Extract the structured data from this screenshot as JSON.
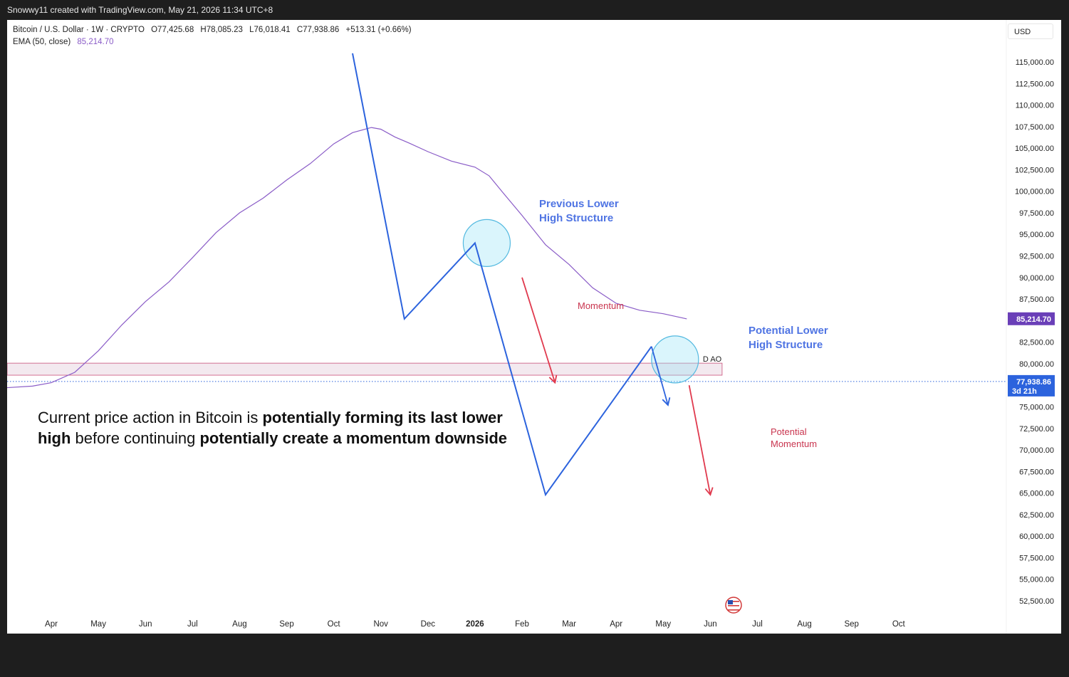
{
  "header": {
    "attribution": "Snowwy11 created with TradingView.com, May 21, 2026 11:34 UTC+8"
  },
  "legend": {
    "symbol": "Bitcoin / U.S. Dollar · 1W · CRYPTO",
    "open": "O77,425.68",
    "high": "H78,085.23",
    "low": "L76,018.41",
    "close": "C77,938.86",
    "change": "+513.31 (+0.66%)",
    "ema_label": "EMA (50, close)",
    "ema_value": "85,214.70"
  },
  "currency": "USD",
  "chart_data": {
    "type": "line",
    "title": "",
    "y_unit": "USD",
    "ylim": [
      51250,
      117500
    ],
    "y_ticks": [
      115000,
      112500,
      110000,
      107500,
      105000,
      102500,
      100000,
      97500,
      95000,
      92500,
      90000,
      87500,
      85000,
      82500,
      80000,
      77500,
      75000,
      72500,
      70000,
      67500,
      65000,
      62500,
      60000,
      57500,
      55000,
      52500
    ],
    "y_tick_labels": [
      "115,000.00",
      "112,500.00",
      "110,000.00",
      "107,500.00",
      "105,000.00",
      "102,500.00",
      "100,000.00",
      "97,500.00",
      "95,000.00",
      "92,500.00",
      "90,000.00",
      "87,500.00",
      "85,000.00",
      "82,500.00",
      "80,000.00",
      "77,500.00",
      "75,000.00",
      "72,500.00",
      "70,000.00",
      "67,500.00",
      "65,000.00",
      "62,500.00",
      "60,000.00",
      "57,500.00",
      "55,000.00",
      "52,500.00"
    ],
    "x_tick_labels": [
      "Apr",
      "May",
      "Jun",
      "Jul",
      "Aug",
      "Sep",
      "Oct",
      "Nov",
      "Dec",
      "2026",
      "Feb",
      "Mar",
      "Apr",
      "May",
      "Jun",
      "Jul",
      "Aug",
      "Sep",
      "Oct"
    ],
    "x_tick_month_index": [
      0,
      1,
      2,
      3,
      4,
      5,
      6,
      7,
      8,
      9,
      10,
      11,
      12,
      13,
      14,
      15,
      16,
      17,
      18
    ],
    "x_tick_start": "2025-04",
    "series": [
      {
        "name": "EMA (50, close)",
        "color": "#8a5cc7",
        "x_month": [
          -1.0,
          -0.4,
          0.0,
          0.5,
          1.0,
          1.5,
          2.0,
          2.5,
          3.0,
          3.5,
          4.0,
          4.5,
          5.0,
          5.5,
          6.0,
          6.4,
          6.8,
          7.0,
          7.3,
          7.6,
          8.0,
          8.5,
          9.0,
          9.3,
          9.6,
          10.0,
          10.5,
          11.0,
          11.5,
          12.0,
          12.5,
          13.0,
          13.5
        ],
        "y": [
          77200,
          77400,
          77800,
          79000,
          81500,
          84500,
          87200,
          89500,
          92300,
          95200,
          97500,
          99200,
          101300,
          103200,
          105500,
          106800,
          107400,
          107200,
          106300,
          105600,
          104600,
          103500,
          102800,
          101800,
          99800,
          97200,
          93800,
          91500,
          88800,
          87000,
          86200,
          85800,
          85200
        ]
      },
      {
        "name": "Drawn projection path",
        "color": "#2c63dd",
        "x_month": [
          6.4,
          7.5,
          9.0,
          10.5,
          12.75
        ],
        "y": [
          116000,
          85200,
          94000,
          64800,
          82000
        ]
      }
    ],
    "current_price_label": "77,938.86",
    "current_price_value": 77938.86,
    "countdown_label": "3d 21h",
    "ema_price_label": "85,214.70",
    "ema_price_value": 85214.7,
    "support_zone": {
      "y_low": 79000,
      "y_high": 79900,
      "x_month_end": 14.25
    },
    "support_zone_label": "D AO",
    "circles": [
      {
        "x_month": 9.25,
        "y": 94000,
        "label": "Previous Lower\nHigh Structure"
      },
      {
        "x_month": 13.25,
        "y": 80500,
        "label": "Potential Lower\nHigh Structure"
      }
    ],
    "arrows": [
      {
        "from": {
          "x_month": 10.0,
          "y": 90000
        },
        "to": {
          "x_month": 10.7,
          "y": 77800
        },
        "color": "#e03a4e",
        "label": "Momentum"
      },
      {
        "from": {
          "x_month": 13.55,
          "y": 77500
        },
        "to": {
          "x_month": 14.0,
          "y": 64800
        },
        "color": "#e03a4e",
        "label": "Potential\nMomentum"
      },
      {
        "from": {
          "x_month": 12.75,
          "y": 82000
        },
        "to": {
          "x_month": 13.1,
          "y": 75200
        },
        "color": "#2c63dd",
        "label": ""
      }
    ],
    "annotation_text": {
      "line1_normal": "Current price action in Bitcoin is ",
      "line1_bold": "potentially forming its last lower",
      "line2_bold_a": "high",
      "line2_normal": " before continuing ",
      "line2_bold_b": "potentially create a momentum downside"
    }
  }
}
